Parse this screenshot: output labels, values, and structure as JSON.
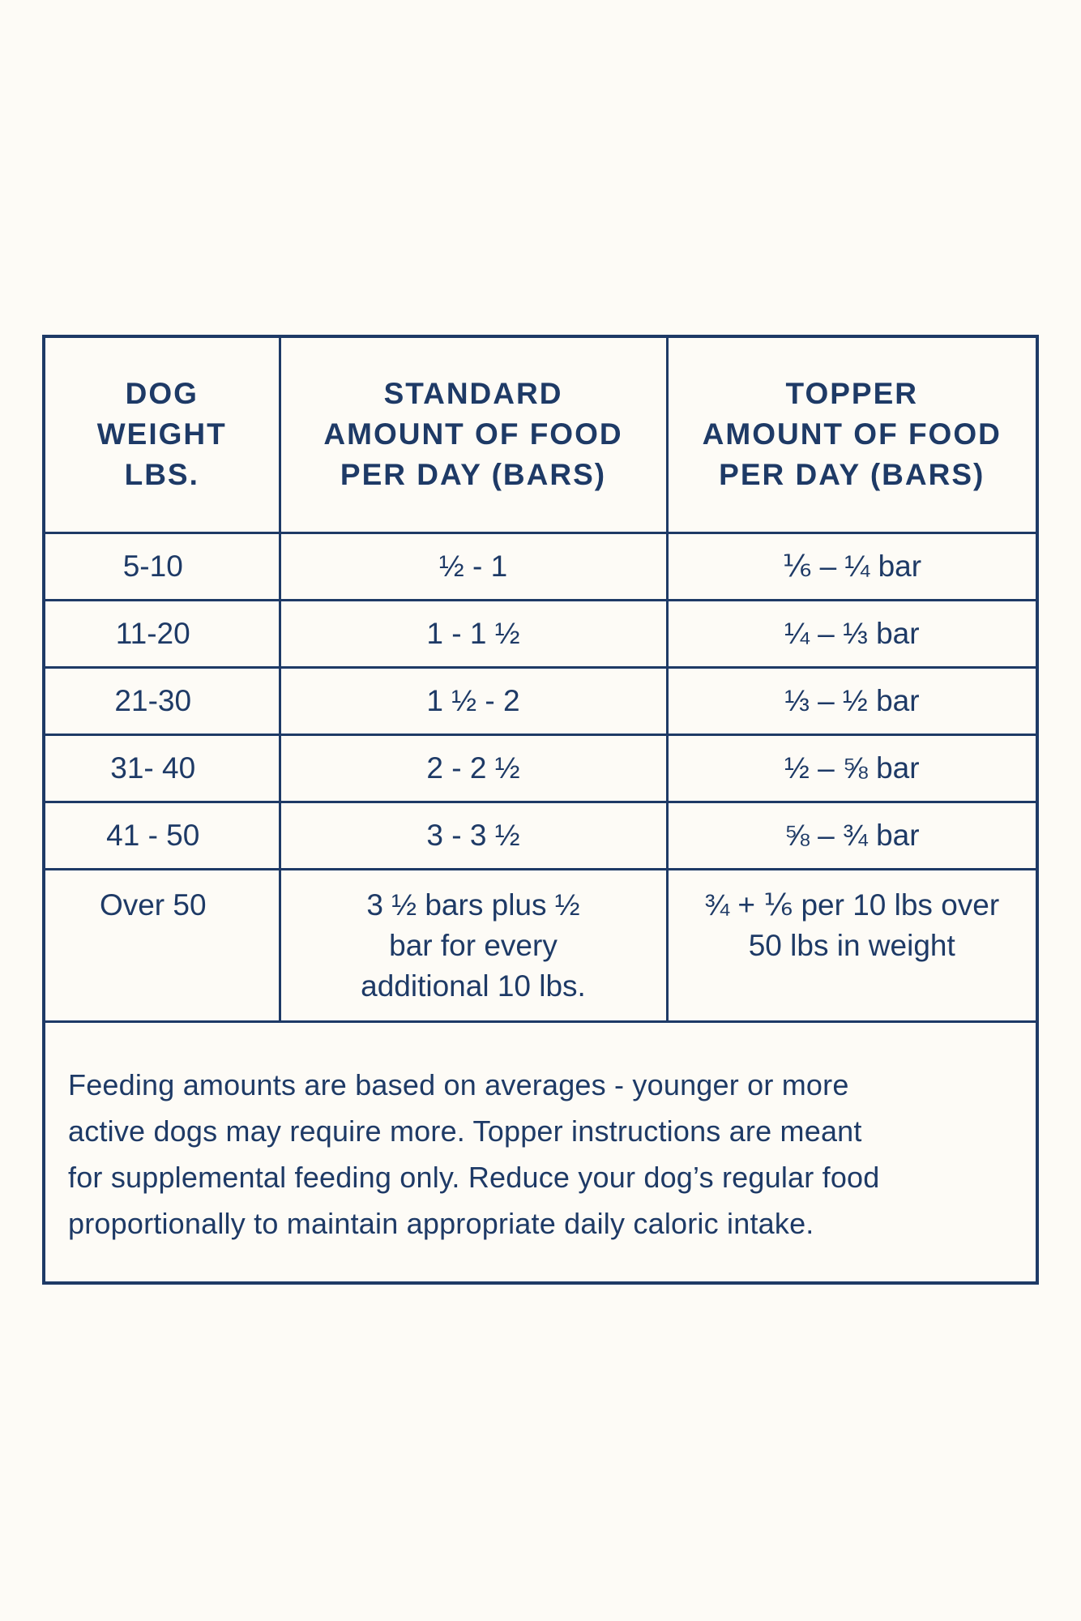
{
  "table": {
    "headers": [
      [
        "DOG",
        "WEIGHT",
        "LBS."
      ],
      [
        "STANDARD",
        "AMOUNT OF FOOD",
        "PER DAY (BARS)"
      ],
      [
        "TOPPER",
        "AMOUNT OF FOOD",
        "PER DAY (BARS)"
      ]
    ],
    "rows": [
      {
        "weight": "5-10",
        "standard": "½ - 1",
        "topper": "⅙ – ¼ bar"
      },
      {
        "weight": "11-20",
        "standard": "1 - 1 ½",
        "topper": "¼ – ⅓ bar"
      },
      {
        "weight": "21-30",
        "standard": "1 ½ - 2",
        "topper": "⅓ – ½ bar"
      },
      {
        "weight": "31- 40",
        "standard": "2 - 2 ½",
        "topper": "½ – ⅝ bar"
      },
      {
        "weight": "41 - 50",
        "standard": "3 - 3 ½",
        "topper": "⅝ – ¾ bar"
      }
    ],
    "last_row": {
      "weight": "Over 50",
      "standard_lines": [
        "3 ½ bars plus ½",
        "bar for every",
        "additional 10 lbs."
      ],
      "topper_lines": [
        "¾ + ⅙ per 10 lbs over",
        "50 lbs in weight"
      ]
    }
  },
  "note_lines": [
    "Feeding amounts are based on averages - younger or more",
    "active dogs may require more. Topper instructions are meant",
    "for supplemental feeding only. Reduce your dog’s regular food",
    "proportionally to maintain appropriate daily caloric intake."
  ]
}
